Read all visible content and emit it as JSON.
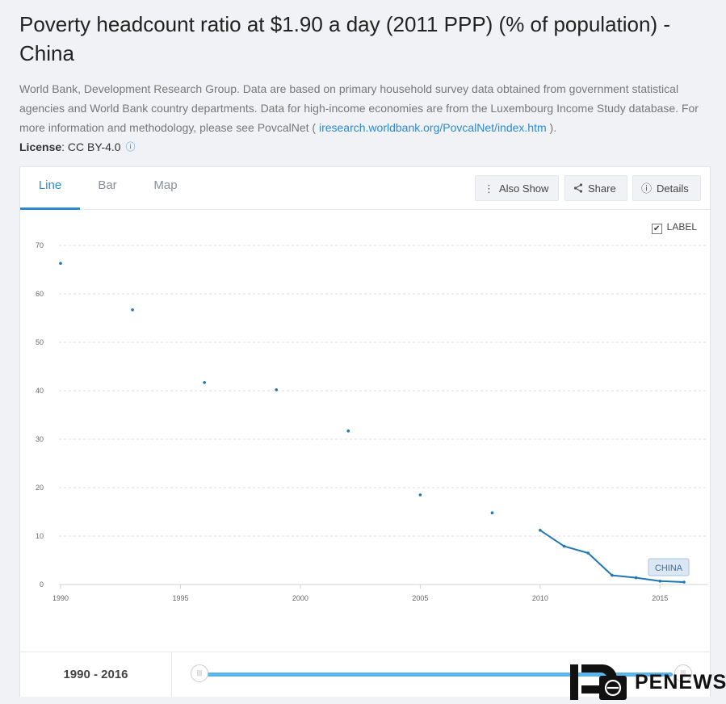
{
  "page": {
    "title": "Poverty headcount ratio at $1.90 a day (2011 PPP) (% of population) - China",
    "description": "World Bank, Development Research Group. Data are based on primary household survey data obtained from government statistical agencies and World Bank country departments. Data for high-income economies are from the Luxembourg Income Study database. For more information and methodology, please see PovcalNet (",
    "link_text": "iresearch.worldbank.org/PovcalNet/index.htm",
    "description_end": ").",
    "license_label": "License",
    "license_value": ": CC BY-4.0"
  },
  "tabs": [
    {
      "label": "Line",
      "active": true
    },
    {
      "label": "Bar",
      "active": false
    },
    {
      "label": "Map",
      "active": false
    }
  ],
  "toolbar": {
    "also_show": "Also Show",
    "share": "Share",
    "details": "Details"
  },
  "label_toggle": {
    "label": "LABEL",
    "checked": true
  },
  "range": {
    "text": "1990 - 2016",
    "start": 1990,
    "end": 2016
  },
  "watermark": {
    "text": "PENEWS"
  },
  "colors": {
    "series": "#1f77b4",
    "accent": "#2a8ad4",
    "slider": "#5bb4ea"
  },
  "chart_data": {
    "type": "line",
    "title": "",
    "xlabel": "",
    "ylabel": "",
    "xlim": [
      1990,
      2016
    ],
    "ylim": [
      0,
      70
    ],
    "xticks": [
      "1990",
      "1995",
      "2000",
      "2005",
      "2010",
      "2015"
    ],
    "yticks": [
      "0",
      "10",
      "20",
      "30",
      "40",
      "50",
      "60",
      "70"
    ],
    "grid": true,
    "series": [
      {
        "name": "CHINA",
        "x": [
          1990,
          1993,
          1996,
          1999,
          2002,
          2005,
          2008,
          2010,
          2011,
          2012,
          2013,
          2014,
          2015,
          2016
        ],
        "y": [
          66.3,
          56.7,
          41.7,
          40.2,
          31.7,
          18.5,
          14.8,
          11.2,
          7.9,
          6.5,
          1.9,
          1.4,
          0.7,
          0.5
        ]
      }
    ]
  }
}
